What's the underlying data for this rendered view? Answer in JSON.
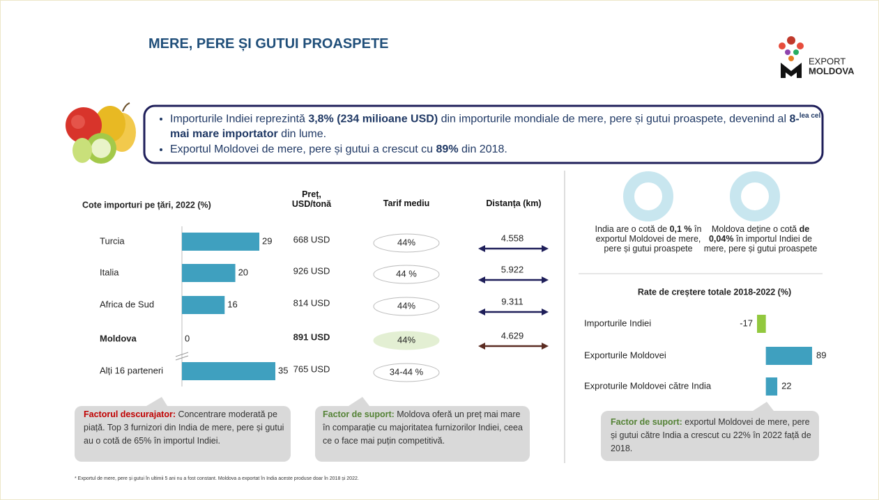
{
  "header": {
    "title": "MERE, PERE ȘI GUTUI PROASPETE",
    "logo_top": "EXPORT",
    "logo_bottom": "MOLDOVA"
  },
  "highlights": [
    [
      {
        "text": "Importurile Indiei reprezintă "
      },
      {
        "text": "3,8% (234 milioane USD)",
        "bold": true
      },
      {
        "text": " din importurile mondiale de mere, pere și gutui proaspete, devenind al "
      },
      {
        "text": "8-",
        "bold": true
      },
      {
        "text": "lea cel",
        "bold": true,
        "sup": true
      },
      {
        "text": " mai mare importator",
        "bold": true
      },
      {
        "text": " din lume."
      }
    ],
    [
      {
        "text": "Exportul Moldovei de mere, pere și gutui a crescut cu "
      },
      {
        "text": "89%",
        "bold": true
      },
      {
        "text": " din 2018."
      }
    ]
  ],
  "chart_data": [
    {
      "type": "bar",
      "orientation": "horizontal",
      "title": "Cote importuri pe țări, 2022 (%)",
      "categories": [
        "Turcia",
        "Italia",
        "Africa de Sud",
        "Moldova",
        "Alți 16 parteneri"
      ],
      "values": [
        29,
        20,
        16,
        0,
        35
      ],
      "color": "#3fa0bf",
      "xlim": [
        0,
        35
      ],
      "axis_break": true,
      "highlight_index": 3
    },
    {
      "type": "bar",
      "orientation": "horizontal",
      "title": "Rate de creștere totale 2018-2022 (%)",
      "categories": [
        "Importurile Indiei",
        "Exporturile Moldovei",
        "Exproturile Moldovei către India"
      ],
      "values": [
        -17,
        89,
        22
      ],
      "colors": [
        "#92c83e",
        "#3fa0bf",
        "#3fa0bf"
      ],
      "xlim": [
        -17,
        89
      ]
    }
  ],
  "table": {
    "headers": [
      "Preț, USD/tonă",
      "Tarif mediu",
      "Distanța (km)"
    ],
    "rows": [
      [
        "668 USD",
        "44%",
        "4.558"
      ],
      [
        "926 USD",
        "44 %",
        "5.922"
      ],
      [
        "814 USD",
        "44%",
        "9.311"
      ],
      [
        "891 USD",
        "44%",
        "4.629"
      ],
      [
        "765 USD",
        "34-44 %",
        null
      ]
    ],
    "arrow_color": "#1f1f5a",
    "highlight_color": "#3fa0bf",
    "highlight_fill": "#e3efd3",
    "highlight_arrow_color": "#5b2c22"
  },
  "shares": [
    [
      {
        "text": "India are o cotă de "
      },
      {
        "text": "0,1 %",
        "bold": true
      },
      {
        "text": " în exportul Moldovei de mere, pere și gutui proaspete"
      }
    ],
    [
      {
        "text": "Moldova deține o cotă "
      },
      {
        "text": "de 0,04%",
        "bold": true
      },
      {
        "text": " în importul Indiei de mere, pere și gutui proaspete"
      }
    ]
  ],
  "factors": [
    {
      "label": "Factorul descurajator:",
      "text": " Concentrare moderată pe piață. Top 3 furnizori din India de mere, pere și gutui au o cotă de 65% în importul Indiei.",
      "label_color": "#c00000"
    },
    {
      "label": "Factor de suport:",
      "text": " Moldova oferă un preț mai mare în comparație cu majoritatea furnizorilor Indiei, ceea ce o face mai puțin competitivă.",
      "label_color": "#548235"
    },
    {
      "label": "Factor de suport:",
      "text": " exportul Moldovei de mere, pere și gutui către India a crescut cu 22% în 2022 față de 2018.",
      "label_color": "#548235"
    }
  ],
  "footnote": "* Exportul de mere, pere și gutui în ultimii 5 ani nu a fost constant. Moldova a exportat în India aceste produse doar în 2018 și 2022."
}
